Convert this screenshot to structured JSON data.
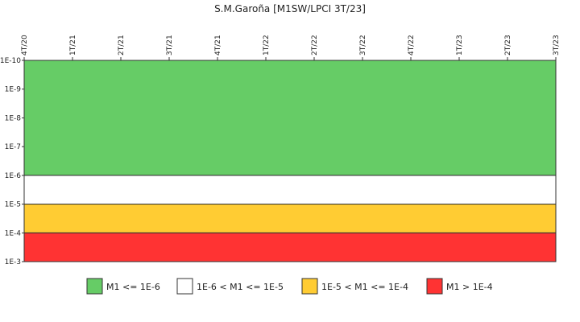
{
  "chart_data": {
    "type": "area",
    "title": "S.M.Garoña [M1SW/LPCI 3T/23]",
    "x_categories": [
      "4T/20",
      "1T/21",
      "2T/21",
      "3T/21",
      "4T/21",
      "1T/22",
      "2T/22",
      "3T/22",
      "4T/22",
      "1T/23",
      "2T/23",
      "3T/23"
    ],
    "x_axis_position": "top",
    "y_ticks": [
      "1E-10",
      "1E-9",
      "1E-8",
      "1E-7",
      "1E-6",
      "1E-5",
      "1E-4",
      "1E-3"
    ],
    "y_scale": "log",
    "y_order": "inverted",
    "bands": [
      {
        "label": "M1 <= 1E-6",
        "from_exp": -10,
        "to_exp": -6,
        "color": "#66cc66"
      },
      {
        "label": "1E-6 < M1 <= 1E-5",
        "from_exp": -6,
        "to_exp": -5,
        "color": "#ffffff"
      },
      {
        "label": "1E-5 < M1 <= 1E-4",
        "from_exp": -5,
        "to_exp": -4,
        "color": "#ffcc33"
      },
      {
        "label": "M1 > 1E-4",
        "from_exp": -4,
        "to_exp": -3,
        "color": "#ff3333"
      }
    ],
    "legend_position": "bottom"
  }
}
